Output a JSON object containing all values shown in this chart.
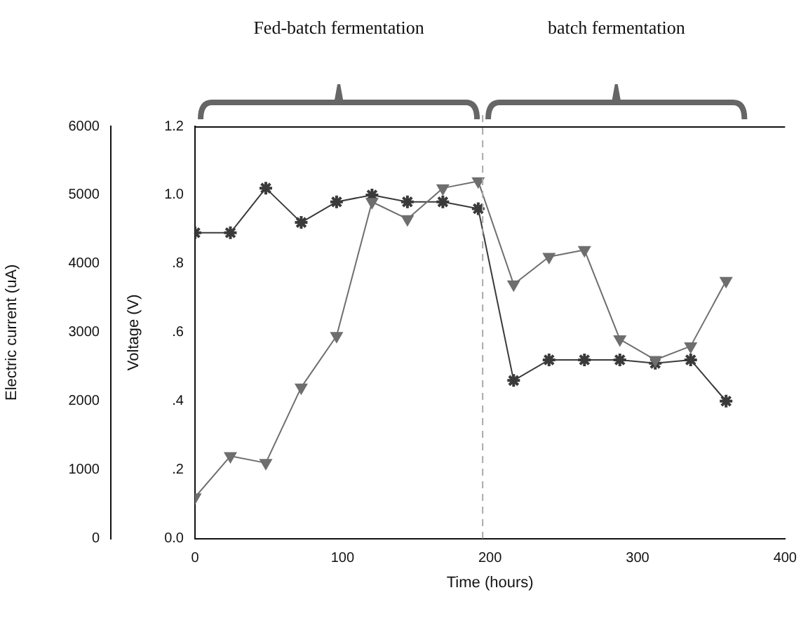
{
  "chart_data": {
    "type": "line",
    "xlabel": "Time (hours)",
    "ylabel": "Electric current (uA)",
    "y2label": "Voltage (V)",
    "x": [
      0,
      24,
      48,
      72,
      96,
      120,
      144,
      168,
      192,
      216,
      240,
      264,
      288,
      312,
      336,
      360
    ],
    "series": [
      {
        "color": "#6e6e6e",
        "marker": "triangle",
        "values": [
          600,
          1200,
          1100,
          2200,
          2950,
          4900,
          4650,
          5100,
          5200,
          3700,
          4100,
          4200,
          2900,
          2600,
          2800,
          3750
        ]
      },
      {
        "color": "#3a3a3a",
        "marker": "cross",
        "axis": "y2",
        "values": [
          0.89,
          0.89,
          1.02,
          0.92,
          0.98,
          1.0,
          0.98,
          0.98,
          0.96,
          0.46,
          0.52,
          0.52,
          0.52,
          0.51,
          0.52,
          0.4
        ]
      }
    ],
    "xlim": [
      0,
      400
    ],
    "xticks": [
      0,
      100,
      200,
      300,
      400
    ],
    "ylim": [
      0,
      6000
    ],
    "yticks": [
      0,
      1000,
      2000,
      3000,
      4000,
      5000,
      6000
    ],
    "y2lim": [
      0,
      1.2
    ],
    "y2ticks": [
      {
        "value": 0,
        "label": "0.0"
      },
      {
        "value": 0.2,
        "label": ".2"
      },
      {
        "value": 0.4,
        "label": ".4"
      },
      {
        "value": 0.6,
        "label": ".6"
      },
      {
        "value": 0.8,
        "label": ".8"
      },
      {
        "value": 1.0,
        "label": "1.0"
      },
      {
        "value": 1.2,
        "label": "1.2"
      }
    ],
    "ref_lines": [
      {
        "axis": "x",
        "value": 195,
        "color": "#aaaaaa",
        "line_style": "dashed"
      }
    ],
    "annotations": [
      "Fed-batch fermentation",
      "batch fermentation"
    ],
    "grid": false,
    "legend": false,
    "line_style": "solid"
  }
}
